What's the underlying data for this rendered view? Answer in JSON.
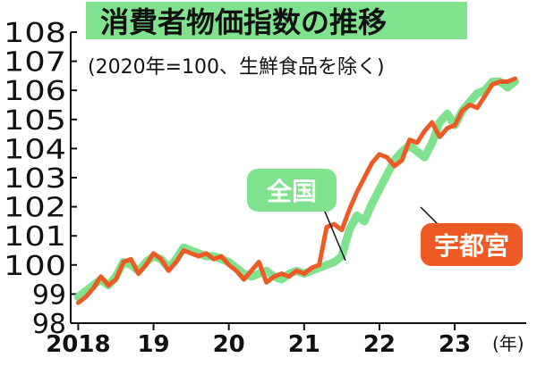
{
  "chart_data": {
    "type": "line",
    "title": "消費者物価指数の推移",
    "subtitle": "(2020年=100、生鮮食品を除く)",
    "xlabel": "",
    "ylabel": "",
    "x_ticks": [
      {
        "label": "2018",
        "x": 2018
      },
      {
        "label": "19",
        "x": 2019
      },
      {
        "label": "20",
        "x": 2020
      },
      {
        "label": "21",
        "x": 2021
      },
      {
        "label": "22",
        "x": 2022
      },
      {
        "label": "23",
        "x": 2023
      }
    ],
    "x_unit": "(年)",
    "xlim": [
      2017.9,
      2023.95
    ],
    "ylim": [
      98,
      108
    ],
    "y_ticks": [
      "98",
      "99",
      "100",
      "101",
      "102",
      "103",
      "104",
      "105",
      "106",
      "107",
      "108"
    ],
    "grid": false,
    "series": [
      {
        "name": "全国",
        "color": "#7ee28e",
        "x": [
          2018.0,
          2018.1,
          2018.2,
          2018.3,
          2018.4,
          2018.5,
          2018.6,
          2018.7,
          2018.8,
          2018.9,
          2019.0,
          2019.1,
          2019.2,
          2019.3,
          2019.4,
          2019.5,
          2019.6,
          2019.7,
          2019.8,
          2019.9,
          2020.0,
          2020.1,
          2020.2,
          2020.3,
          2020.4,
          2020.5,
          2020.6,
          2020.7,
          2020.8,
          2020.9,
          2021.0,
          2021.1,
          2021.2,
          2021.3,
          2021.4,
          2021.5,
          2021.6,
          2021.7,
          2021.8,
          2021.9,
          2022.0,
          2022.1,
          2022.2,
          2022.3,
          2022.4,
          2022.5,
          2022.6,
          2022.7,
          2022.8,
          2022.9,
          2023.0,
          2023.1,
          2023.2,
          2023.3,
          2023.4,
          2023.5,
          2023.6,
          2023.7,
          2023.8
        ],
        "values": [
          98.9,
          99.1,
          99.3,
          99.5,
          99.3,
          99.6,
          100.1,
          100.0,
          99.8,
          100.1,
          100.3,
          100.2,
          99.9,
          100.2,
          100.6,
          100.5,
          100.4,
          100.3,
          100.3,
          100.2,
          100.1,
          99.9,
          99.7,
          99.6,
          99.7,
          99.8,
          99.6,
          99.5,
          99.7,
          99.8,
          99.7,
          99.8,
          99.9,
          100.0,
          100.1,
          100.3,
          101.2,
          101.7,
          101.5,
          102.1,
          102.6,
          103.1,
          103.6,
          103.9,
          104.1,
          103.9,
          103.7,
          104.2,
          104.9,
          105.2,
          104.8,
          105.3,
          105.6,
          105.9,
          106.0,
          106.3,
          106.3,
          106.1,
          106.3
        ]
      },
      {
        "name": "宇都宮",
        "color": "#ee5a24",
        "x": [
          2018.0,
          2018.1,
          2018.2,
          2018.3,
          2018.4,
          2018.5,
          2018.6,
          2018.7,
          2018.8,
          2018.9,
          2019.0,
          2019.1,
          2019.2,
          2019.3,
          2019.4,
          2019.5,
          2019.6,
          2019.7,
          2019.8,
          2019.9,
          2020.0,
          2020.1,
          2020.2,
          2020.3,
          2020.4,
          2020.5,
          2020.6,
          2020.7,
          2020.8,
          2020.9,
          2021.0,
          2021.1,
          2021.2,
          2021.3,
          2021.4,
          2021.5,
          2021.6,
          2021.7,
          2021.8,
          2021.9,
          2022.0,
          2022.1,
          2022.2,
          2022.3,
          2022.4,
          2022.5,
          2022.6,
          2022.7,
          2022.8,
          2022.9,
          2023.0,
          2023.1,
          2023.2,
          2023.3,
          2023.4,
          2023.5,
          2023.6,
          2023.7,
          2023.8
        ],
        "values": [
          98.7,
          98.9,
          99.2,
          99.6,
          99.3,
          99.5,
          100.1,
          100.2,
          99.7,
          100.0,
          100.4,
          100.2,
          99.8,
          100.1,
          100.5,
          100.4,
          100.3,
          100.4,
          100.2,
          100.3,
          100.0,
          99.8,
          99.5,
          99.8,
          100.1,
          99.4,
          99.6,
          99.7,
          99.6,
          99.8,
          99.7,
          99.9,
          100.0,
          101.3,
          101.4,
          101.2,
          101.9,
          102.5,
          103.0,
          103.5,
          103.8,
          103.7,
          103.4,
          103.6,
          104.3,
          104.2,
          104.6,
          104.9,
          104.4,
          104.7,
          104.8,
          105.3,
          105.5,
          105.4,
          105.8,
          106.2,
          106.3,
          106.3,
          106.4
        ]
      }
    ]
  }
}
